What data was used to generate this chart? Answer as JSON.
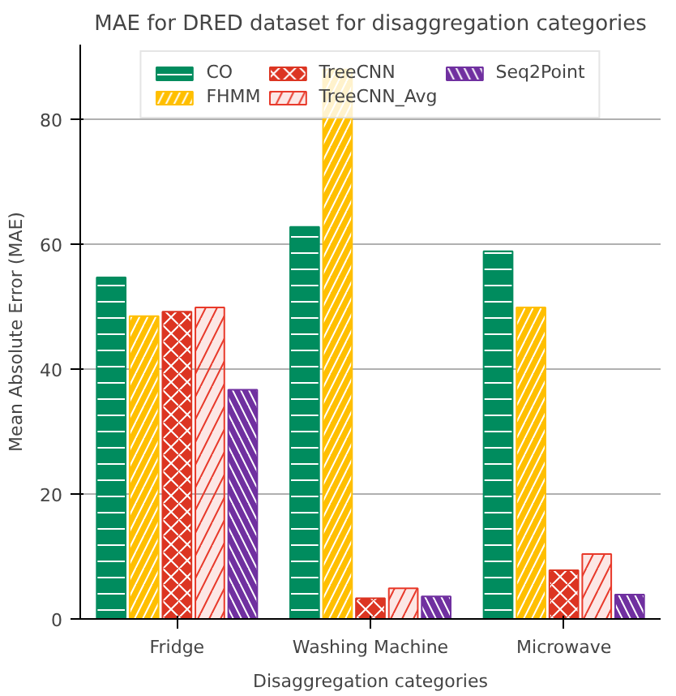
{
  "chart_data": {
    "type": "bar",
    "title": "MAE for DRED dataset for disaggregation categories",
    "xlabel": "Disaggregation categories",
    "ylabel": "Mean Absolute Error (MAE)",
    "categories": [
      "Fridge",
      "Washing Machine",
      "Microwave"
    ],
    "series": [
      {
        "name": "CO",
        "color": "#008c5e",
        "values": [
          54.7,
          62.8,
          58.9
        ]
      },
      {
        "name": "FHMM",
        "color": "#ffbf00",
        "values": [
          48.5,
          88,
          49.9
        ]
      },
      {
        "name": "TreeCNN",
        "color": "#dc3522",
        "values": [
          49.2,
          3.3,
          7.8
        ]
      },
      {
        "name": "TreeCNN_Avg",
        "color": "#e8392a",
        "values": [
          49.9,
          4.9,
          10.4
        ]
      },
      {
        "name": "Seq2Point",
        "color": "#7030a0",
        "values": [
          36.7,
          3.6,
          3.9
        ]
      }
    ],
    "ylim": [
      0,
      92
    ],
    "yticks": [
      0,
      20,
      40,
      60,
      80
    ],
    "grid": "y",
    "legend": "top"
  }
}
